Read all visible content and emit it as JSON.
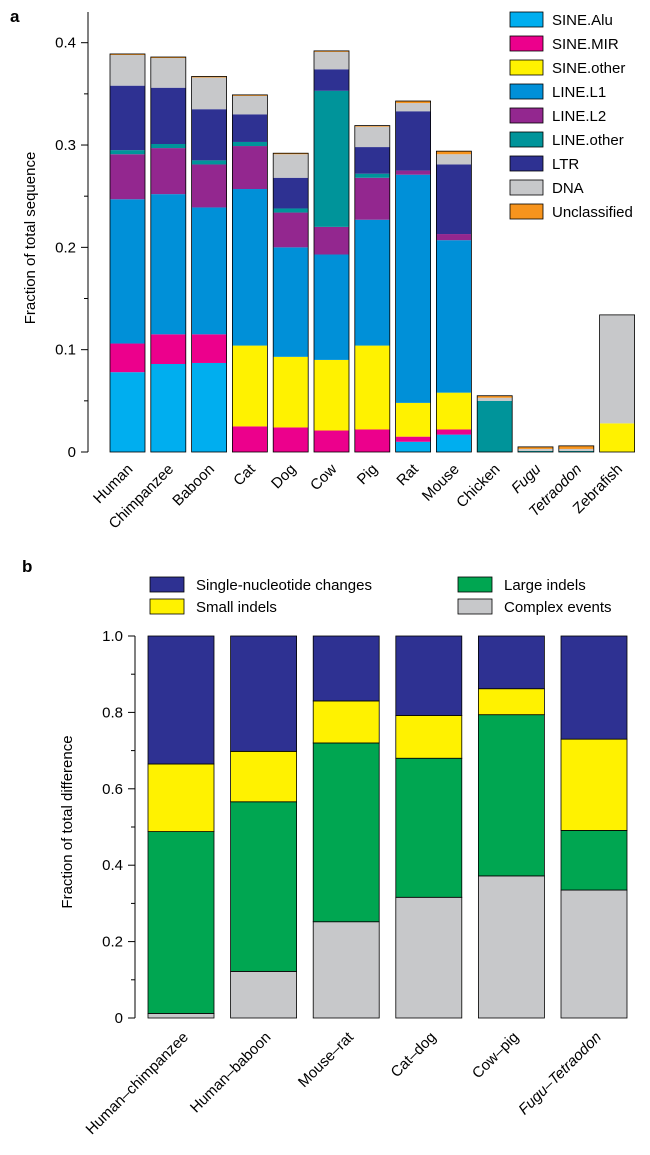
{
  "chart_data": [
    {
      "panel": "a",
      "type": "bar",
      "stacked": true,
      "ylabel": "Fraction of total sequence",
      "ylim": [
        0,
        0.43
      ],
      "yticks": [
        "0",
        "0.1",
        "0.2",
        "0.3",
        "0.4"
      ],
      "categories": [
        "Human",
        "Chimpanzee",
        "Baboon",
        "Cat",
        "Dog",
        "Cow",
        "Pig",
        "Rat",
        "Mouse",
        "Chicken",
        "Fugu",
        "Tetraodon",
        "Zebrafish"
      ],
      "italic_categories": [
        "Fugu",
        "Tetraodon"
      ],
      "legend_position": "top-right",
      "series": [
        {
          "name": "SINE.Alu",
          "color": "#00aeef",
          "values": [
            0.078,
            0.086,
            0.087,
            0,
            0,
            0,
            0,
            0.01,
            0.017,
            0,
            0,
            0,
            0
          ]
        },
        {
          "name": "SINE.MIR",
          "color": "#ec008c",
          "values": [
            0.028,
            0.029,
            0.028,
            0.025,
            0.024,
            0.021,
            0.022,
            0.005,
            0.005,
            0,
            0,
            0,
            0
          ]
        },
        {
          "name": "SINE.other",
          "color": "#fff200",
          "values": [
            0,
            0,
            0,
            0.079,
            0.069,
            0.069,
            0.082,
            0.033,
            0.036,
            0,
            0,
            0,
            0.028
          ]
        },
        {
          "name": "LINE.L1",
          "color": "#0090d8",
          "values": [
            0.141,
            0.137,
            0.124,
            0.153,
            0.107,
            0.103,
            0.123,
            0.223,
            0.149,
            0,
            0,
            0,
            0
          ]
        },
        {
          "name": "LINE.L2",
          "color": "#93278f",
          "values": [
            0.044,
            0.045,
            0.042,
            0.042,
            0.034,
            0.027,
            0.041,
            0.004,
            0.006,
            0,
            0,
            0,
            0
          ]
        },
        {
          "name": "LINE.other",
          "color": "#00949a",
          "values": [
            0.004,
            0.004,
            0.004,
            0.004,
            0.004,
            0.133,
            0.004,
            0,
            0,
            0.05,
            0.001,
            0.001,
            0
          ]
        },
        {
          "name": "LTR",
          "color": "#2e3192",
          "values": [
            0.063,
            0.055,
            0.05,
            0.027,
            0.03,
            0.021,
            0.026,
            0.058,
            0.068,
            0,
            0,
            0,
            0
          ]
        },
        {
          "name": "DNA",
          "color": "#c7c8ca",
          "values": [
            0.03,
            0.029,
            0.031,
            0.018,
            0.023,
            0.017,
            0.02,
            0.008,
            0.01,
            0.003,
            0.002,
            0.002,
            0.106
          ]
        },
        {
          "name": "Unclassified",
          "color": "#f7941d",
          "values": [
            0.001,
            0.001,
            0.001,
            0.001,
            0.001,
            0.001,
            0.001,
            0.002,
            0.003,
            0.002,
            0.002,
            0.003,
            0
          ]
        }
      ]
    },
    {
      "panel": "b",
      "type": "bar",
      "stacked": true,
      "ylabel": "Fraction of total difference",
      "ylim": [
        0,
        1.0
      ],
      "yticks": [
        "0",
        "0.2",
        "0.4",
        "0.6",
        "0.8",
        "1.0"
      ],
      "categories": [
        "Human–chimpanzee",
        "Human–baboon",
        "Mouse–rat",
        "Cat–dog",
        "Cow–pig",
        "Fugu–Tetraodon"
      ],
      "italic_categories": [
        "Fugu–Tetraodon"
      ],
      "legend_position": "top",
      "series": [
        {
          "name": "Complex events",
          "color": "#c7c8ca",
          "values": [
            0.012,
            0.122,
            0.252,
            0.316,
            0.372,
            0.335
          ]
        },
        {
          "name": "Large indels",
          "color": "#00a651",
          "values": [
            0.476,
            0.444,
            0.468,
            0.364,
            0.422,
            0.156
          ]
        },
        {
          "name": "Small indels",
          "color": "#fff200",
          "values": [
            0.177,
            0.132,
            0.11,
            0.112,
            0.068,
            0.239
          ]
        },
        {
          "name": "Single-nucleotide changes",
          "color": "#2e3192",
          "values": [
            0.335,
            0.302,
            0.17,
            0.208,
            0.138,
            0.27
          ]
        }
      ],
      "legend_order": [
        "Single-nucleotide changes",
        "Large indels",
        "Small indels",
        "Complex events"
      ]
    }
  ]
}
